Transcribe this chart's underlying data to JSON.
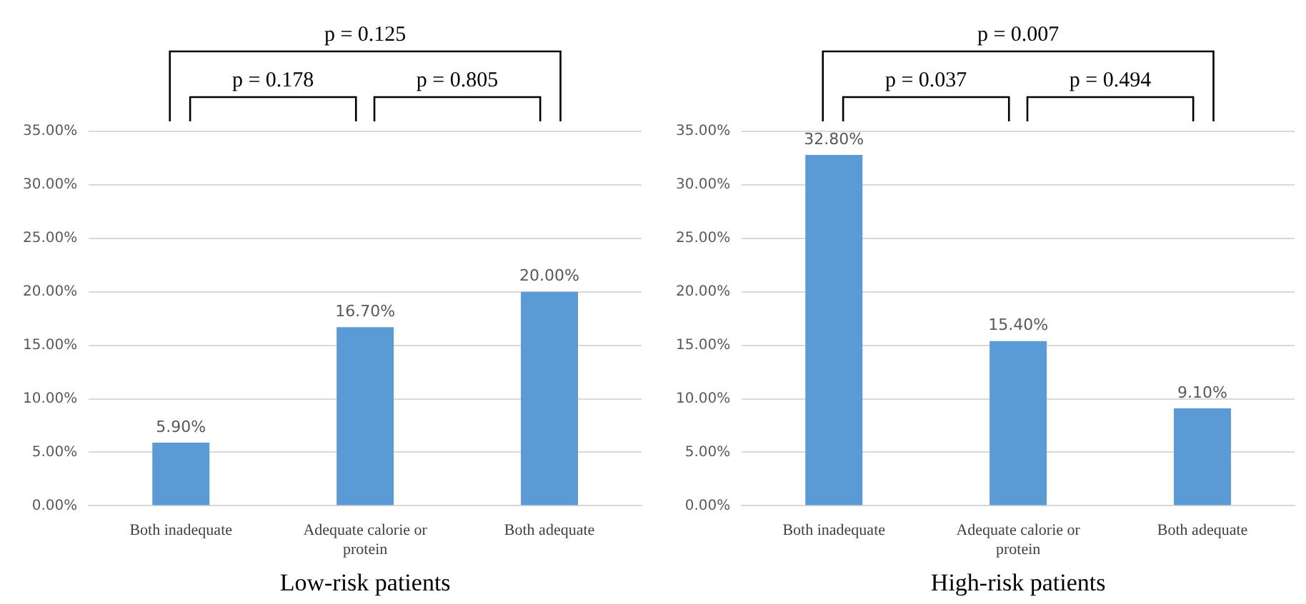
{
  "chart_data": [
    {
      "type": "bar",
      "xlabel": "Low-risk patients",
      "categories": [
        "Both inadequate",
        "Adequate calorie or protein",
        "Both adequate"
      ],
      "values": [
        5.9,
        16.7,
        20.0
      ],
      "value_labels": [
        "5.90%",
        "16.70%",
        "20.00%"
      ],
      "color": "#5b9bd5",
      "ylim": [
        0,
        35
      ],
      "yticks": [
        {
          "value": 0,
          "label": "0.00%"
        },
        {
          "value": 5,
          "label": "5.00%"
        },
        {
          "value": 10,
          "label": "10.00%"
        },
        {
          "value": 15,
          "label": "15.00%"
        },
        {
          "value": 20,
          "label": "20.00%"
        },
        {
          "value": 25,
          "label": "25.00%"
        },
        {
          "value": 30,
          "label": "30.00%"
        },
        {
          "value": 35,
          "label": "35.00%"
        }
      ],
      "grid": "y",
      "annotations": [
        "p = 0.125",
        "p = 0.178",
        "p = 0.805"
      ]
    },
    {
      "type": "bar",
      "xlabel": "High-risk patients",
      "categories": [
        "Both inadequate",
        "Adequate calorie or protein",
        "Both adequate"
      ],
      "values": [
        32.8,
        15.4,
        9.1
      ],
      "value_labels": [
        "32.80%",
        "15.40%",
        "9.10%"
      ],
      "color": "#5b9bd5",
      "ylim": [
        0,
        35
      ],
      "yticks": [
        {
          "value": 0,
          "label": "0.00%"
        },
        {
          "value": 5,
          "label": "5.00%"
        },
        {
          "value": 10,
          "label": "10.00%"
        },
        {
          "value": 15,
          "label": "15.00%"
        },
        {
          "value": 20,
          "label": "20.00%"
        },
        {
          "value": 25,
          "label": "25.00%"
        },
        {
          "value": 30,
          "label": "30.00%"
        },
        {
          "value": 35,
          "label": "35.00%"
        }
      ],
      "grid": "y",
      "annotations": [
        "p = 0.007",
        "p = 0.037",
        "p = 0.494"
      ]
    }
  ]
}
